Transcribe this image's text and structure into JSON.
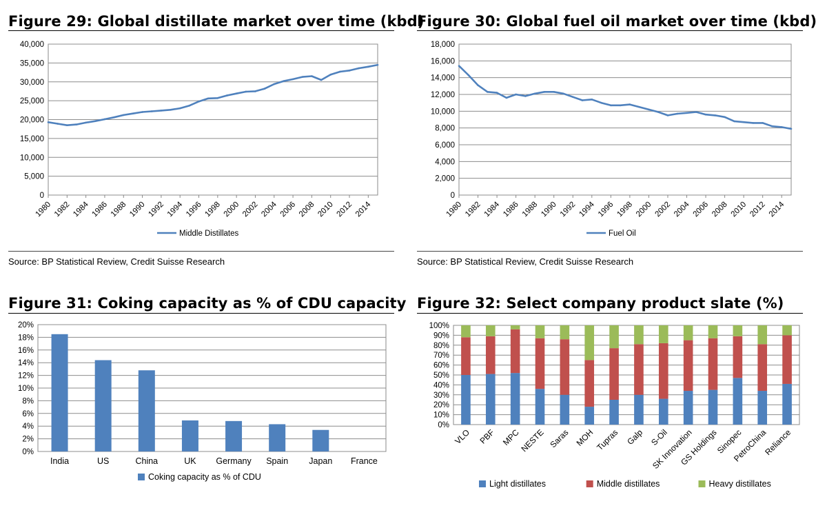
{
  "figures": [
    {
      "title": "Figure 29: Global distillate market over time (kbd)",
      "source": "Source: BP Statistical Review, Credit Suisse Research"
    },
    {
      "title": "Figure 30: Global fuel oil market over time (kbd)",
      "source": "Source: BP Statistical Review, Credit Suisse Research"
    },
    {
      "title": "Figure 31: Coking capacity as % of CDU capacity"
    },
    {
      "title": "Figure 32: Select company product slate (%)"
    }
  ],
  "chart_data": [
    {
      "type": "line",
      "title": "Figure 29: Global distillate market over time (kbd)",
      "ylim": [
        0,
        40000
      ],
      "yticks": [
        "0",
        "5,000",
        "10,000",
        "15,000",
        "20,000",
        "25,000",
        "30,000",
        "35,000",
        "40,000"
      ],
      "xticks": [
        "1980",
        "1982",
        "1984",
        "1986",
        "1988",
        "1990",
        "1992",
        "1994",
        "1996",
        "1998",
        "2000",
        "2002",
        "2004",
        "2006",
        "2008",
        "2010",
        "2012",
        "2014"
      ],
      "x": [
        1980,
        1981,
        1982,
        1983,
        1984,
        1985,
        1986,
        1987,
        1988,
        1989,
        1990,
        1991,
        1992,
        1993,
        1994,
        1995,
        1996,
        1997,
        1998,
        1999,
        2000,
        2001,
        2002,
        2003,
        2004,
        2005,
        2006,
        2007,
        2008,
        2009,
        2010,
        2011,
        2012,
        2013,
        2014,
        2015
      ],
      "grid": true,
      "legend": "bottom",
      "color": "#4f81bd",
      "series": [
        {
          "name": "Middle Distillates",
          "values": [
            19300,
            18900,
            18500,
            18700,
            19200,
            19600,
            20100,
            20600,
            21200,
            21600,
            22000,
            22200,
            22400,
            22600,
            23000,
            23700,
            24800,
            25600,
            25700,
            26400,
            26900,
            27400,
            27500,
            28200,
            29400,
            30200,
            30700,
            31300,
            31500,
            30500,
            31900,
            32700,
            33000,
            33600,
            34000,
            34500
          ]
        }
      ]
    },
    {
      "type": "line",
      "title": "Figure 30: Global fuel oil market over time (kbd)",
      "ylim": [
        0,
        18000
      ],
      "yticks": [
        "0",
        "2,000",
        "4,000",
        "6,000",
        "8,000",
        "10,000",
        "12,000",
        "14,000",
        "16,000",
        "18,000"
      ],
      "xticks": [
        "1980",
        "1982",
        "1984",
        "1986",
        "1988",
        "1990",
        "1992",
        "1994",
        "1996",
        "1998",
        "2000",
        "2002",
        "2004",
        "2006",
        "2008",
        "2010",
        "2012",
        "2014"
      ],
      "x": [
        1980,
        1981,
        1982,
        1983,
        1984,
        1985,
        1986,
        1987,
        1988,
        1989,
        1990,
        1991,
        1992,
        1993,
        1994,
        1995,
        1996,
        1997,
        1998,
        1999,
        2000,
        2001,
        2002,
        2003,
        2004,
        2005,
        2006,
        2007,
        2008,
        2009,
        2010,
        2011,
        2012,
        2013,
        2014,
        2015
      ],
      "grid": true,
      "legend": "bottom",
      "color": "#4f81bd",
      "series": [
        {
          "name": "Fuel Oil",
          "values": [
            15400,
            14300,
            13100,
            12300,
            12200,
            11600,
            12000,
            11800,
            12100,
            12300,
            12300,
            12100,
            11700,
            11300,
            11400,
            11000,
            10700,
            10700,
            10800,
            10500,
            10200,
            9900,
            9500,
            9700,
            9800,
            9900,
            9600,
            9500,
            9300,
            8800,
            8700,
            8600,
            8600,
            8200,
            8100,
            7900
          ]
        }
      ]
    },
    {
      "type": "bar",
      "title": "Figure 31: Coking capacity as % of CDU capacity",
      "categories": [
        "India",
        "US",
        "China",
        "UK",
        "Germany",
        "Spain",
        "Japan",
        "France"
      ],
      "ylim": [
        0,
        20
      ],
      "yticks": [
        "0%",
        "2%",
        "4%",
        "6%",
        "8%",
        "10%",
        "12%",
        "14%",
        "16%",
        "18%",
        "20%"
      ],
      "grid": true,
      "legend": "bottom",
      "color": "#4f81bd",
      "series": [
        {
          "name": "Coking capacity as % of CDU",
          "values": [
            18.5,
            14.4,
            12.8,
            4.9,
            4.8,
            4.3,
            3.4,
            0
          ]
        }
      ]
    },
    {
      "type": "bar",
      "stacked": true,
      "title": "Figure 32: Select company product slate (%)",
      "categories": [
        "VLO",
        "PBF",
        "MPC",
        "NESTE",
        "Saras",
        "MOH",
        "Tupras",
        "Galp",
        "S-Oil",
        "SK Innovation",
        "GS Holdings",
        "Sinopec",
        "PetroChina",
        "Reliance"
      ],
      "ylim": [
        0,
        100
      ],
      "yticks": [
        "0%",
        "10%",
        "20%",
        "30%",
        "40%",
        "50%",
        "60%",
        "70%",
        "80%",
        "90%",
        "100%"
      ],
      "grid": true,
      "legend": "bottom",
      "series": [
        {
          "name": "Light distillates",
          "color": "#4f81bd",
          "values": [
            50,
            51,
            52,
            36,
            30,
            18,
            25,
            30,
            26,
            34,
            35,
            47,
            34,
            41
          ]
        },
        {
          "name": "Middle distillates",
          "color": "#c0504d",
          "values": [
            38,
            38,
            44,
            51,
            56,
            47,
            52,
            51,
            56,
            51,
            52,
            42,
            47,
            49
          ]
        },
        {
          "name": "Heavy distillates",
          "color": "#9bbb59",
          "values": [
            12,
            11,
            4,
            13,
            14,
            35,
            23,
            19,
            18,
            15,
            13,
            11,
            19,
            10
          ]
        }
      ]
    }
  ]
}
